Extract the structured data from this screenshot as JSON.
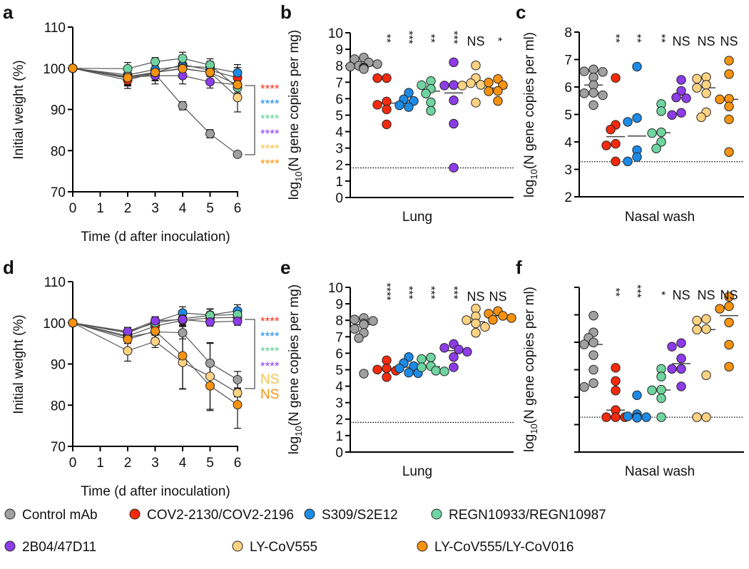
{
  "legend": [
    {
      "label": "Control mAb",
      "color": "#a0a0a0"
    },
    {
      "label": "COV2-2130/COV2-2196",
      "color": "#f52a0c"
    },
    {
      "label": "S309/S2E12",
      "color": "#1c8be6"
    },
    {
      "label": "REGN10933/REGN10987",
      "color": "#6fd4a0"
    },
    {
      "label": "2B04/47D11",
      "color": "#8d3ce8"
    },
    {
      "label": "LY-CoV555",
      "color": "#fdd383"
    },
    {
      "label": "LY-CoV555/LY-CoV016",
      "color": "#f7930f"
    }
  ],
  "chart_data": [
    {
      "panel": "a",
      "type": "line",
      "xlabel": "Time (d after inoculation)",
      "ylabel": "Initial weight (%)",
      "x": [
        0,
        2,
        3,
        4,
        5,
        6
      ],
      "xticks": [
        "0",
        "1",
        "2",
        "3",
        "4",
        "5",
        "6"
      ],
      "xlim": [
        0,
        6
      ],
      "ylim": [
        70,
        110
      ],
      "yticks": [
        "70",
        "80",
        "90",
        "100",
        "110"
      ],
      "series": [
        {
          "values": [
            100,
            97.6,
            98.6,
            90.9,
            84.1,
            79.1
          ],
          "err": [
            0,
            1.5,
            1.5,
            1,
            1,
            0.5
          ],
          "significance": null
        },
        {
          "values": [
            100,
            97.1,
            99.0,
            100.9,
            99.5,
            97.7
          ],
          "err": [
            0,
            2,
            2,
            2,
            1.5,
            2.5
          ],
          "significance": "****"
        },
        {
          "values": [
            100,
            98.4,
            99.7,
            100.5,
            100.2,
            98.9
          ],
          "err": [
            0,
            1.5,
            2,
            2,
            1.5,
            2
          ],
          "significance": "****"
        },
        {
          "values": [
            100,
            99.9,
            101.6,
            102.4,
            100.8,
            95.3
          ],
          "err": [
            0,
            1.5,
            1,
            1.5,
            1.5,
            2
          ],
          "significance": "****"
        },
        {
          "values": [
            100,
            97.8,
            98.2,
            98.2,
            96.7,
            96.0
          ],
          "err": [
            0,
            2,
            2,
            2,
            1.5,
            2
          ],
          "significance": "****"
        },
        {
          "values": [
            100,
            98.0,
            99.0,
            100.0,
            99.0,
            92.9
          ],
          "err": [
            0,
            2,
            2,
            2,
            2,
            3.5
          ],
          "significance": "****"
        },
        {
          "values": [
            100,
            97.7,
            99.0,
            99.9,
            99.0,
            96.0
          ],
          "err": [
            0,
            2,
            2,
            2,
            2,
            2
          ],
          "significance": "****"
        }
      ]
    },
    {
      "panel": "b",
      "type": "scatter",
      "xlabel": "Lung",
      "ylabel": "log10(N gene copies per mg)",
      "ylim": [
        0,
        10
      ],
      "yticks": [
        "0",
        "1",
        "2",
        "3",
        "4",
        "5",
        "6",
        "7",
        "8",
        "9",
        "10"
      ],
      "limit_of_detection": 1.8,
      "groups": [
        {
          "values": [
            8.5,
            8.4,
            8.2,
            8.1,
            8.0,
            7.95,
            7.9,
            7.85,
            7.8
          ],
          "significance": ""
        },
        {
          "values": [
            7.25,
            7.25,
            5.83,
            5.63,
            5.35,
            4.44
          ],
          "significance": "**"
        },
        {
          "values": [
            6.36,
            5.96,
            5.86,
            5.6,
            5.49
          ],
          "significance": "***"
        },
        {
          "values": [
            7.07,
            6.82,
            6.6,
            6.31,
            5.78,
            5.27
          ],
          "significance": "**"
        },
        {
          "values": [
            8.21,
            6.83,
            6.8,
            5.9,
            4.48,
            1.81
          ],
          "significance": "***"
        },
        {
          "values": [
            8.02,
            7.25,
            6.94,
            6.84,
            6.8,
            5.76
          ],
          "significance": "NS"
        },
        {
          "values": [
            7.2,
            6.98,
            6.82,
            6.47,
            6.45,
            5.86
          ],
          "significance": "*"
        }
      ]
    },
    {
      "panel": "c",
      "type": "scatter",
      "xlabel": "Nasal wash",
      "ylabel": "log10(N gene copies per ml)",
      "ylim": [
        2,
        8
      ],
      "yticks": [
        "2",
        "3",
        "4",
        "5",
        "6",
        "7",
        "8"
      ],
      "limit_of_detection": 3.28,
      "groups": [
        {
          "values": [
            6.64,
            6.57,
            6.55,
            6.35,
            6.07,
            5.79,
            5.77,
            5.7,
            5.34
          ],
          "significance": ""
        },
        {
          "values": [
            6.33,
            4.62,
            4.45,
            3.93,
            3.87,
            3.29
          ],
          "significance": "**"
        },
        {
          "values": [
            6.74,
            4.87,
            4.73,
            3.7,
            3.45,
            3.29
          ],
          "significance": "**"
        },
        {
          "values": [
            5.38,
            5.12,
            4.35,
            4.32,
            4.0,
            3.76
          ],
          "significance": "**"
        },
        {
          "values": [
            6.26,
            5.86,
            5.62,
            5.59,
            5.06,
            4.98
          ],
          "significance": "NS"
        },
        {
          "values": [
            6.36,
            6.3,
            6.08,
            5.97,
            5.77,
            5.08,
            4.9
          ],
          "significance": "NS"
        },
        {
          "values": [
            6.96,
            6.47,
            5.57,
            5.55,
            5.29,
            4.82,
            3.63
          ],
          "significance": "NS"
        }
      ]
    },
    {
      "panel": "d",
      "type": "line",
      "xlabel": "Time (d after inoculation)",
      "ylabel": "Initial weight (%)",
      "x": [
        0,
        2,
        3,
        4,
        5,
        6
      ],
      "xticks": [
        "0",
        "1",
        "2",
        "3",
        "4",
        "5",
        "6"
      ],
      "xlim": [
        0,
        6
      ],
      "ylim": [
        70,
        110
      ],
      "yticks": [
        "70",
        "80",
        "90",
        "100",
        "110"
      ],
      "series": [
        {
          "values": [
            100,
            96.5,
            97.8,
            97.6,
            90.2,
            86.2
          ],
          "err": [
            0,
            1.5,
            1.5,
            1.5,
            5,
            2
          ],
          "significance": null
        },
        {
          "values": [
            100,
            96.8,
            99.2,
            100.6,
            101.2,
            101.3
          ],
          "err": [
            0,
            1.5,
            1.5,
            1.5,
            1.5,
            1.5
          ],
          "significance": "****"
        },
        {
          "values": [
            100,
            97.5,
            100.3,
            102.4,
            101.9,
            102.9
          ],
          "err": [
            0,
            1,
            1,
            1.5,
            1.5,
            1.5
          ],
          "significance": "****"
        },
        {
          "values": [
            100,
            97.8,
            100.0,
            101.0,
            101.8,
            102.0
          ],
          "err": [
            0,
            1,
            1,
            1.5,
            1.5,
            1.5
          ],
          "significance": "****"
        },
        {
          "values": [
            100,
            97.9,
            100.5,
            100.8,
            100.2,
            100.4
          ],
          "err": [
            0,
            1,
            1,
            1.5,
            1,
            1
          ],
          "significance": "****"
        },
        {
          "values": [
            100,
            93.2,
            95.5,
            90.4,
            87.0,
            83.0
          ],
          "err": [
            0,
            2.5,
            1.5,
            6.5,
            8,
            1
          ],
          "significance": "NS"
        },
        {
          "values": [
            100,
            96.0,
            98.0,
            92.0,
            84.7,
            80.1
          ],
          "err": [
            0,
            1,
            1,
            8,
            6,
            5.7
          ],
          "significance": "NS"
        }
      ]
    },
    {
      "panel": "e",
      "type": "scatter",
      "xlabel": "Lung",
      "ylabel": "log10(N gene copies per mg)",
      "ylim": [
        0,
        10
      ],
      "yticks": [
        "0",
        "1",
        "2",
        "3",
        "4",
        "5",
        "6",
        "7",
        "8",
        "9",
        "10"
      ],
      "limit_of_detection": 1.8,
      "groups": [
        {
          "values": [
            8.14,
            8.05,
            7.96,
            7.81,
            7.74,
            7.48,
            7.24,
            6.92,
            4.76
          ],
          "significance": ""
        },
        {
          "values": [
            5.57,
            5.08,
            5.01,
            4.94,
            4.55
          ],
          "significance": "****"
        },
        {
          "values": [
            5.77,
            5.4,
            5.22,
            5.08,
            4.82,
            4.79
          ],
          "significance": "***"
        },
        {
          "values": [
            5.74,
            5.65,
            5.22,
            5.15,
            4.94,
            4.9
          ],
          "significance": "***"
        },
        {
          "values": [
            6.56,
            6.33,
            6.23,
            6.09,
            5.77,
            5.15
          ],
          "significance": "***"
        },
        {
          "values": [
            8.71,
            8.24,
            8.01,
            7.81,
            7.6,
            7.24
          ],
          "significance": "NS"
        },
        {
          "values": [
            8.56,
            8.4,
            8.27,
            8.14,
            8.03
          ],
          "significance": "NS"
        }
      ]
    },
    {
      "panel": "f",
      "type": "scatter",
      "xlabel": "Nasal wash",
      "ylabel": "log10(N gene copies per ml)",
      "ylim": [
        2,
        8
      ],
      "yticks": [
        "",
        "",
        "",
        "",
        "",
        "",
        ""
      ],
      "limit_of_detection": 3.27,
      "groups": [
        {
          "values": [
            6.97,
            6.36,
            6.16,
            5.99,
            5.92,
            5.53,
            5.0,
            4.51,
            4.37
          ],
          "significance": ""
        },
        {
          "values": [
            5.07,
            4.59,
            4.24,
            3.53,
            3.27,
            3.27,
            3.27
          ],
          "significance": "**"
        },
        {
          "values": [
            4.07,
            3.38,
            3.3,
            3.27,
            3.27,
            3.25
          ],
          "significance": "***"
        },
        {
          "values": [
            5.03,
            4.75,
            4.27,
            4.25,
            3.96,
            3.27
          ],
          "significance": "*"
        },
        {
          "values": [
            5.97,
            5.84,
            5.41,
            5.03,
            5.03,
            4.39
          ],
          "significance": "NS"
        },
        {
          "values": [
            6.85,
            6.79,
            6.48,
            6.46,
            4.8,
            3.27,
            3.27
          ],
          "significance": "NS"
        },
        {
          "values": [
            7.66,
            7.31,
            7.22,
            6.72,
            5.91,
            5.11
          ],
          "significance": "NS"
        }
      ]
    }
  ]
}
